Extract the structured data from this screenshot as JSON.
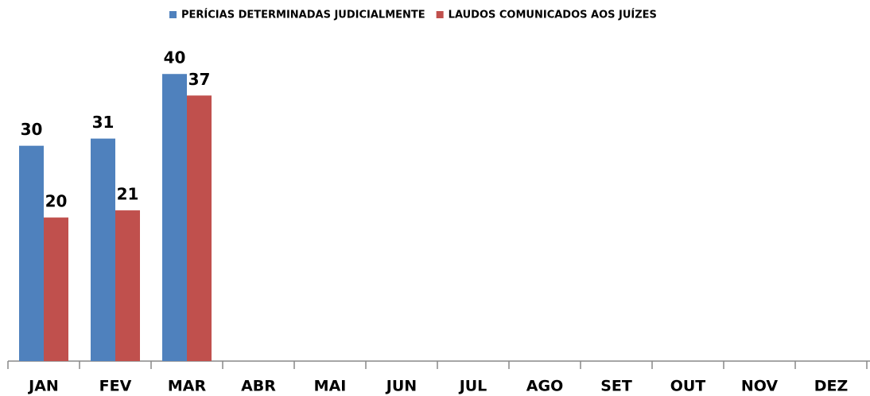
{
  "chart_data": {
    "type": "bar",
    "categories": [
      "JAN",
      "FEV",
      "MAR",
      "ABR",
      "MAI",
      "JUN",
      "JUL",
      "AGO",
      "SET",
      "OUT",
      "NOV",
      "DEZ"
    ],
    "series": [
      {
        "name": "PERÍCIAS DETERMINADAS JUDICIALMENTE",
        "color": "#4f81bd",
        "values": [
          30,
          31,
          40,
          null,
          null,
          null,
          null,
          null,
          null,
          null,
          null,
          null
        ]
      },
      {
        "name": "LAUDOS COMUNICADOS AOS JUÍZES",
        "color": "#c0504d",
        "values": [
          20,
          21,
          37,
          null,
          null,
          null,
          null,
          null,
          null,
          null,
          null,
          null
        ]
      }
    ],
    "ylim": [
      0,
      45
    ]
  }
}
